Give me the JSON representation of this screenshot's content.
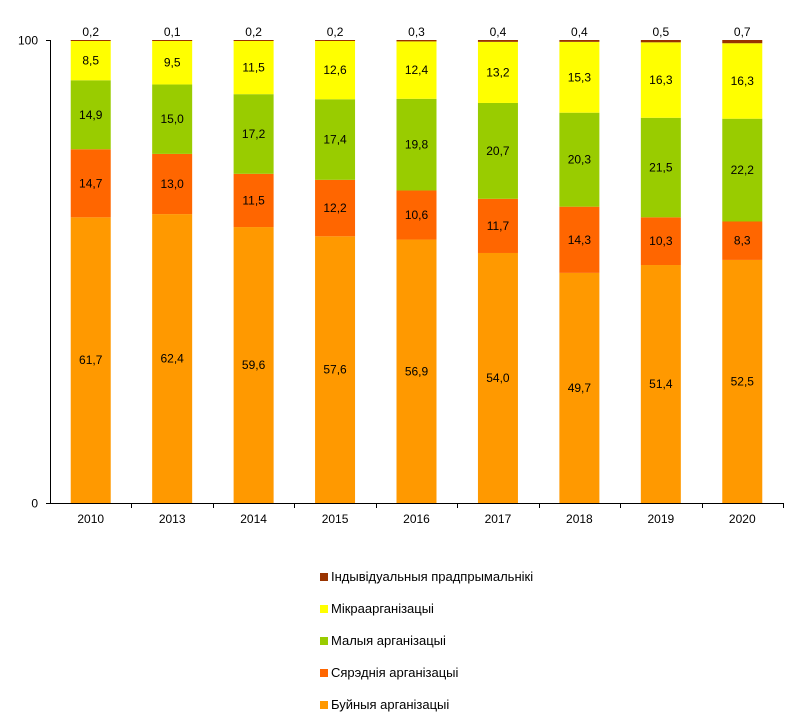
{
  "chart_data": {
    "type": "bar",
    "stacked": true,
    "title": "",
    "xlabel": "",
    "ylabel": "",
    "ylim": [
      0,
      100
    ],
    "yticks": [
      "0",
      "100"
    ],
    "categories": [
      "2010",
      "2013",
      "2014",
      "2015",
      "2016",
      "2017",
      "2018",
      "2019",
      "2020"
    ],
    "series": [
      {
        "name": "Буйныя арганізацыі",
        "color": "#FF9900",
        "values": [
          61.7,
          62.4,
          59.6,
          57.6,
          56.9,
          54.0,
          49.7,
          51.4,
          52.5
        ],
        "labels": [
          "61,7",
          "62,4",
          "59,6",
          "57,6",
          "56,9",
          "54,0",
          "49,7",
          "51,4",
          "52,5"
        ]
      },
      {
        "name": "Сярэднія арганізацыі",
        "color": "#FF6600",
        "values": [
          14.7,
          13.0,
          11.5,
          12.2,
          10.6,
          11.7,
          14.3,
          10.3,
          8.3
        ],
        "labels": [
          "14,7",
          "13,0",
          "11,5",
          "12,2",
          "10,6",
          "11,7",
          "14,3",
          "10,3",
          "8,3"
        ]
      },
      {
        "name": "Малыя арганізацыі",
        "color": "#99CC00",
        "values": [
          14.9,
          15.0,
          17.2,
          17.4,
          19.8,
          20.7,
          20.3,
          21.5,
          22.2
        ],
        "labels": [
          "14,9",
          "15,0",
          "17,2",
          "17,4",
          "19,8",
          "20,7",
          "20,3",
          "21,5",
          "22,2"
        ]
      },
      {
        "name": "Мікраарганізацыі",
        "color": "#FFFF00",
        "values": [
          8.5,
          9.5,
          11.5,
          12.6,
          12.4,
          13.2,
          15.3,
          16.3,
          16.3
        ],
        "labels": [
          "8,5",
          "9,5",
          "11,5",
          "12,6",
          "12,4",
          "13,2",
          "15,3",
          "16,3",
          "16,3"
        ]
      },
      {
        "name": "Індывідуальныя прадпрымальнікі",
        "color": "#993300",
        "values": [
          0.2,
          0.1,
          0.2,
          0.2,
          0.3,
          0.4,
          0.4,
          0.5,
          0.7
        ],
        "labels": [
          "0,2",
          "0,1",
          "0,2",
          "0,2",
          "0,3",
          "0,4",
          "0,4",
          "0,5",
          "0,7"
        ]
      }
    ],
    "legend": {
      "placement": "bottom",
      "order": [
        "Індывідуальныя прадпрымальнікі",
        "Мікраарганізацыі",
        "Малыя арганізацыі",
        "Сярэднія арганізацыі",
        "Буйныя арганізацыі"
      ]
    },
    "grid": false
  }
}
